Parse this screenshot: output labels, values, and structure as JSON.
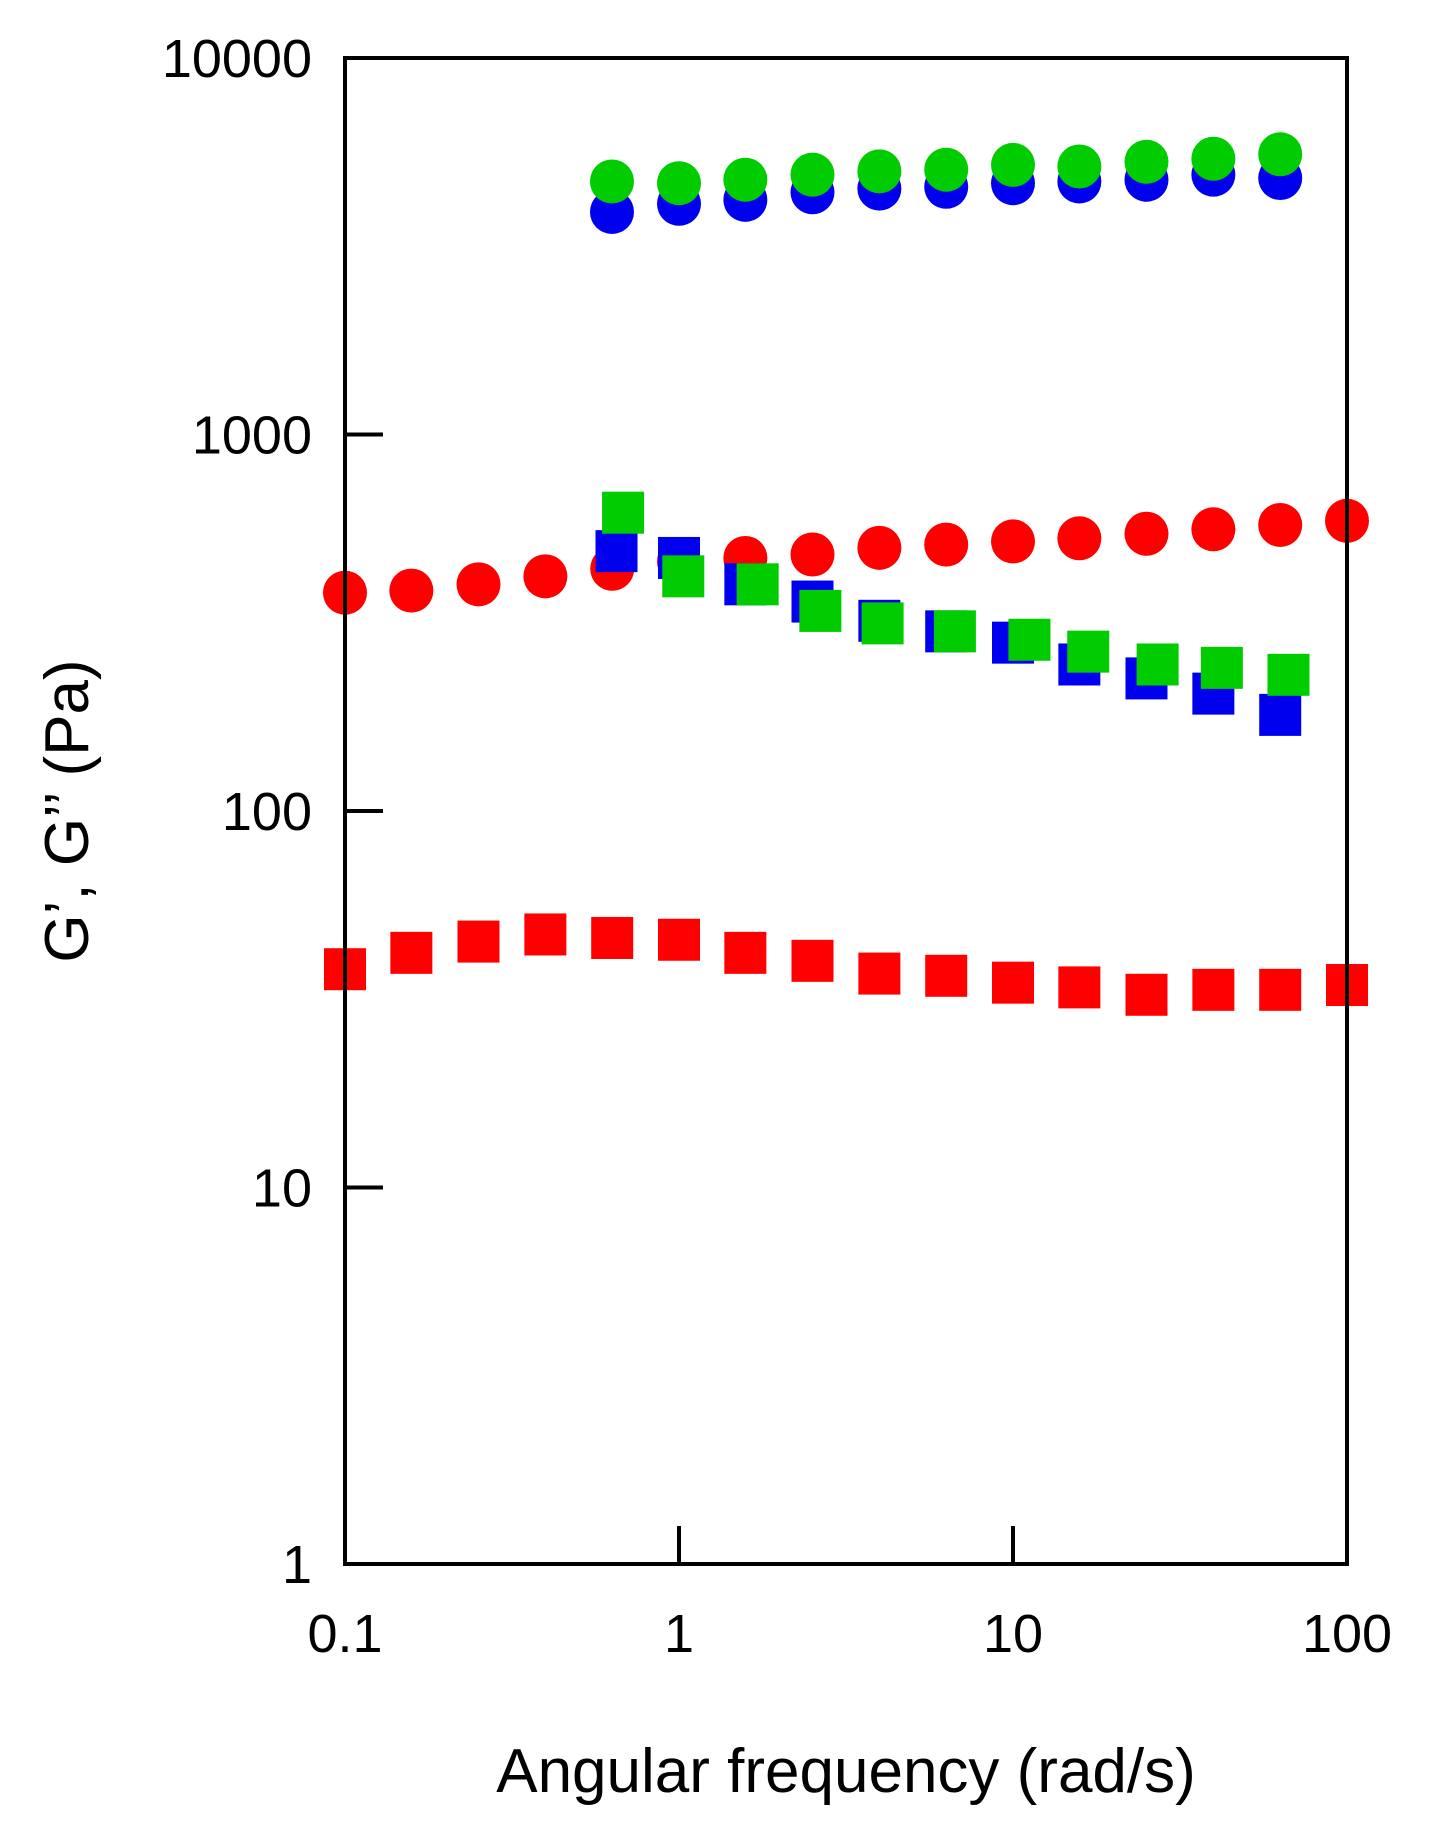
{
  "chart_data": {
    "type": "scatter",
    "title": "",
    "xlabel": "Angular frequency (rad/s)",
    "ylabel": "G’, G’’ (Pa)",
    "x_scale": "log",
    "y_scale": "log",
    "xlim": [
      0.1,
      100
    ],
    "ylim": [
      1,
      10000
    ],
    "x_ticks": [
      0.1,
      1,
      10,
      100
    ],
    "x_tick_labels": [
      "0.1",
      "1",
      "10",
      "100"
    ],
    "y_ticks": [
      1,
      10,
      100,
      1000,
      10000
    ],
    "y_tick_labels": [
      "1",
      "10",
      "100",
      "1000",
      "10000"
    ],
    "grid": false,
    "legend": false,
    "series": [
      {
        "marker": "circle",
        "color": "#0000ee",
        "x": [
          0.63,
          1.0,
          1.58,
          2.51,
          3.98,
          6.31,
          10,
          15.8,
          25.1,
          39.8,
          63.1
        ],
        "y": [
          3900,
          4100,
          4200,
          4400,
          4500,
          4550,
          4650,
          4700,
          4750,
          4900,
          4800
        ]
      },
      {
        "marker": "circle",
        "color": "#00cc00",
        "x": [
          0.63,
          1.0,
          1.58,
          2.51,
          3.98,
          6.31,
          10,
          15.8,
          25.1,
          39.8,
          63.1
        ],
        "y": [
          4700,
          4650,
          4750,
          4900,
          5000,
          5050,
          5200,
          5150,
          5300,
          5400,
          5550
        ]
      },
      {
        "marker": "circle",
        "color": "#ff0000",
        "x": [
          0.1,
          0.158,
          0.251,
          0.398,
          0.631,
          1.0,
          1.58,
          2.51,
          3.98,
          6.31,
          10,
          15.8,
          25.1,
          39.8,
          63.1,
          100
        ],
        "y": [
          380,
          385,
          400,
          420,
          440,
          460,
          470,
          480,
          500,
          510,
          520,
          530,
          545,
          560,
          575,
          590
        ]
      },
      {
        "marker": "square",
        "color": "#0000ee",
        "x": [
          0.65,
          1.0,
          1.58,
          2.51,
          3.98,
          6.31,
          10,
          15.8,
          25.1,
          39.8,
          63.1
        ],
        "y": [
          490,
          470,
          400,
          360,
          320,
          300,
          280,
          245,
          225,
          205,
          180
        ]
      },
      {
        "marker": "square",
        "color": "#00cc00",
        "x": [
          0.68,
          1.03,
          1.72,
          2.65,
          4.07,
          6.7,
          11.2,
          16.8,
          27.1,
          42.2,
          66.8
        ],
        "y": [
          620,
          420,
          400,
          340,
          315,
          300,
          285,
          265,
          245,
          240,
          230
        ]
      },
      {
        "marker": "square",
        "color": "#ff0000",
        "x": [
          0.1,
          0.158,
          0.251,
          0.398,
          0.631,
          1.0,
          1.58,
          2.51,
          3.98,
          6.31,
          10,
          15.8,
          25.1,
          39.8,
          63.1,
          100
        ],
        "y": [
          38,
          42,
          45,
          47,
          46,
          45.5,
          42,
          40,
          37,
          36.5,
          35,
          34,
          32.5,
          33.5,
          33.5,
          34.5
        ]
      }
    ]
  }
}
